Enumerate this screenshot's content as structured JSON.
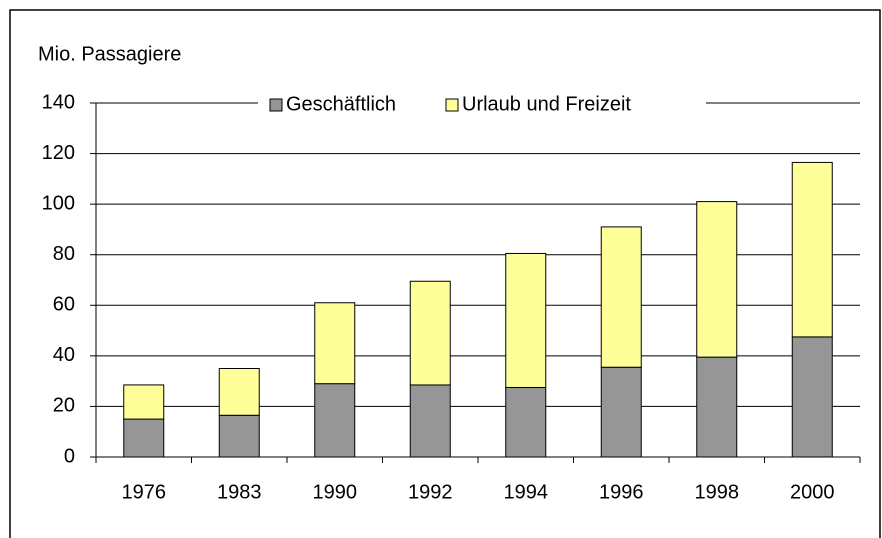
{
  "chart_data": {
    "type": "stacked_bar",
    "y_axis_label": "Mio. Passagiere",
    "categories": [
      "1976",
      "1983",
      "1990",
      "1992",
      "1994",
      "1996",
      "1998",
      "2000"
    ],
    "series": [
      {
        "name": "Geschäftlich",
        "color": "#969696",
        "values": [
          15,
          16.5,
          29,
          28.5,
          27.5,
          35.5,
          39.5,
          47.5
        ]
      },
      {
        "name": "Urlaub und Freizeit",
        "color": "#FFFF99",
        "values": [
          13.5,
          18.5,
          32,
          41,
          53,
          55.5,
          61.5,
          69
        ]
      }
    ],
    "ylim": [
      0,
      140
    ],
    "yticks": [
      0,
      20,
      40,
      60,
      80,
      100,
      120,
      140
    ],
    "grid": true,
    "legend": "top"
  }
}
